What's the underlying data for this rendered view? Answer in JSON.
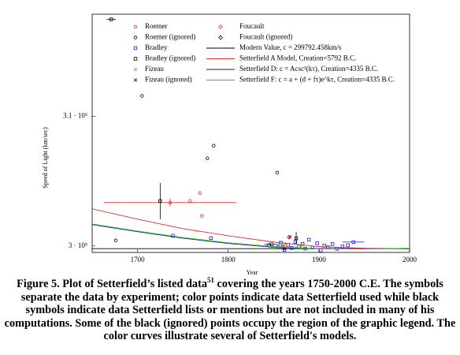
{
  "chart_data": {
    "type": "scatter",
    "x_label": "Year",
    "y_label": "Speed of Light (km/sec)",
    "xlim": [
      1650,
      2000
    ],
    "ylim": [
      299500,
      317900
    ],
    "xticks": [
      1700,
      1800,
      1900,
      2000
    ],
    "yticks": [
      {
        "value": 300000,
        "label": "3 · 10⁵"
      },
      {
        "value": 310000,
        "label": "3.1 · 10⁵"
      }
    ],
    "legend": "top",
    "series": [
      {
        "name": "Roemer",
        "color": "#e03030",
        "marker": "circle",
        "x": [
          1736,
          1758,
          1769,
          1771
        ],
        "y": [
          303350,
          303480,
          304090,
          302320
        ],
        "xerr": [
          73,
          null,
          null,
          null
        ],
        "yerr": [
          300,
          null,
          null,
          null
        ]
      },
      {
        "name": "Roemer (ignored)",
        "color": "#000000",
        "marker": "circle",
        "x": [
          1676,
          1705,
          1777,
          1784,
          1854
        ],
        "y": [
          300430,
          311590,
          306770,
          307740,
          305670
        ]
      },
      {
        "name": "Bradley",
        "color": "#1a1adc",
        "marker": "square",
        "x": [
          1739,
          1781,
          1848,
          1855,
          1858,
          1862,
          1866,
          1870,
          1874,
          1878,
          1882,
          1885,
          1889,
          1893,
          1898,
          1902,
          1906,
          1910,
          1915,
          1920,
          1926,
          1932,
          1938
        ],
        "y": [
          300790,
          300610,
          300120,
          299900,
          300250,
          299700,
          300080,
          299850,
          300320,
          299950,
          300150,
          299800,
          300480,
          299880,
          300210,
          299650,
          300020,
          299900,
          300150,
          299780,
          299960,
          300050,
          300300
        ],
        "xerr": [
          null,
          null,
          8,
          null,
          null,
          null,
          null,
          null,
          null,
          null,
          null,
          null,
          null,
          null,
          null,
          null,
          null,
          null,
          null,
          null,
          null,
          null,
          12
        ]
      },
      {
        "name": "Bradley (ignored)",
        "color": "#000000",
        "marker": "square",
        "x": [
          1725,
          1875,
          1860,
          1671
        ],
        "y": [
          303470,
          300600,
          299900,
          317500
        ],
        "xerr": [
          null,
          null,
          null,
          5
        ],
        "yerr": [
          1400,
          500,
          null,
          null
        ]
      },
      {
        "name": "Fizeau",
        "color": "#30c030",
        "marker": "cross",
        "x": [
          1849,
          1862,
          1875,
          1880
        ],
        "y": [
          299950,
          300150,
          299880,
          299990
        ]
      },
      {
        "name": "Fizeau (ignored)",
        "color": "#000000",
        "marker": "cross",
        "x": [
          1862,
          1868
        ],
        "y": [
          299800,
          300700
        ]
      },
      {
        "name": "Foucault",
        "color": "#e03030",
        "marker": "diamond",
        "x": [
          1862,
          1867
        ],
        "y": [
          299850,
          300670
        ]
      },
      {
        "name": "Foucault (ignored)",
        "color": "#000000",
        "marker": "diamond",
        "x": [
          1845
        ],
        "y": [
          300050
        ]
      },
      {
        "name": "Modern Value, c = 299792.458km/s",
        "color": "#000000",
        "marker": "line",
        "x": [
          1650,
          2000
        ],
        "y": [
          299792.458,
          299792.458
        ]
      },
      {
        "name": "Setterfield A Model, Creation=5792 B.C.",
        "color": "#e03030",
        "marker": "line",
        "x": [
          1650,
          1700,
          1750,
          1800,
          1850,
          1900,
          1950,
          2000
        ],
        "y": [
          302870,
          302070,
          301340,
          300790,
          300300,
          299950,
          299820,
          299800
        ]
      },
      {
        "name": "Setterfield D: c = Acsc²(kτ), Creation=4335 B.C.",
        "color": "#1a1a9a",
        "marker": "line",
        "x": [
          1650,
          1700,
          1750,
          1800,
          1850,
          1900,
          1950,
          2000
        ],
        "y": [
          301650,
          301100,
          300600,
          300200,
          299900,
          299800,
          299793,
          299793
        ]
      },
      {
        "name": "Setterfield F: c = a + (d + fτ)e^kτ, Creation=4335 B.C.",
        "color": "#30c030",
        "marker": "line",
        "x": [
          1650,
          1700,
          1750,
          1800,
          1850,
          1900,
          1950,
          2000
        ],
        "y": [
          301700,
          301150,
          300650,
          300250,
          299950,
          299780,
          299760,
          299830
        ]
      }
    ]
  },
  "caption": {
    "text_before": "Figure 5. Plot of Setterfield’s listed data",
    "superscript": "51",
    "text_after": " covering the years 1750-2000 C.E. The symbols separate the data by experiment; color points indicate data Setterfield used while black symbols indicate data Setterfield lists or mentions but are not included in many of his computations. Some of the black (ignored) points occupy the region of the graphic legend. The color curves illustrate several of Setterfield's models."
  }
}
